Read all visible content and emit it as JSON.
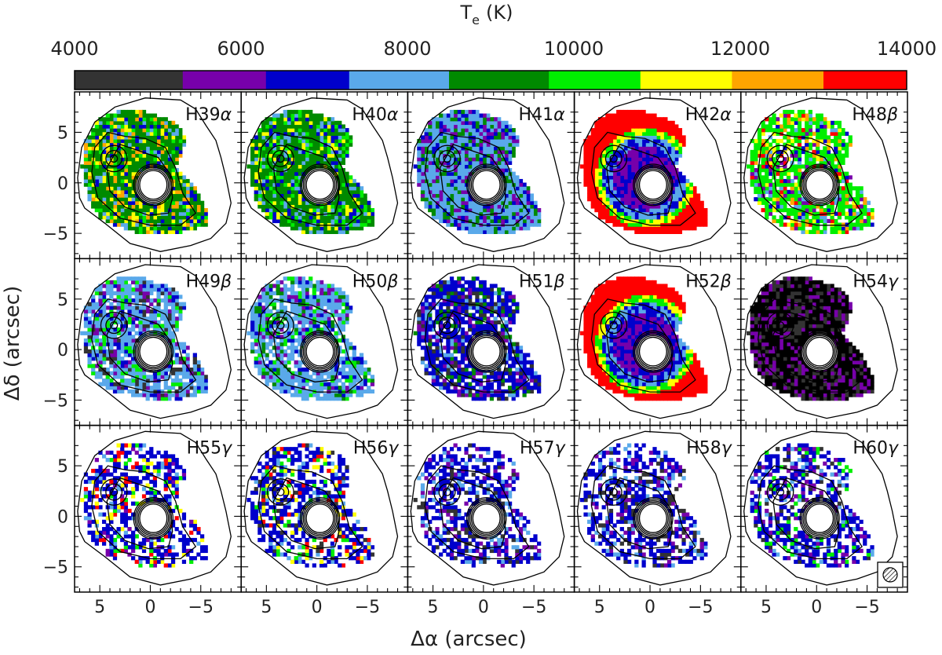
{
  "chart_data": {
    "type": "heatmap",
    "title": "",
    "colorbar": {
      "label_main": "T",
      "label_sub": "e",
      "label_unit": "(K)",
      "ticks": [
        4000,
        6000,
        8000,
        10000,
        12000,
        14000
      ],
      "tick_labels": [
        "4000",
        "6000",
        "8000",
        "10000",
        "12000",
        "14000"
      ],
      "range": [
        4000,
        14000
      ],
      "bins": [
        {
          "from": 4000,
          "to": 5300,
          "color": "#333333"
        },
        {
          "from": 5300,
          "to": 6300,
          "color": "#7700aa"
        },
        {
          "from": 6300,
          "to": 7300,
          "color": "#0000cc"
        },
        {
          "from": 7300,
          "to": 8500,
          "color": "#5aa9ea"
        },
        {
          "from": 8500,
          "to": 9700,
          "color": "#008a00"
        },
        {
          "from": 9700,
          "to": 10800,
          "color": "#00ee00"
        },
        {
          "from": 10800,
          "to": 11900,
          "color": "#ffff00"
        },
        {
          "from": 11900,
          "to": 13000,
          "color": "#ffa500"
        },
        {
          "from": 13000,
          "to": 14000,
          "color": "#ff0000"
        }
      ]
    },
    "xlabel": "Δα (arcsec)",
    "ylabel": "Δδ (arcsec)",
    "xlim": [
      7.5,
      -9
    ],
    "ylim": [
      -7.5,
      9
    ],
    "x_ticks": [
      5,
      0,
      -5
    ],
    "x_tick_labels": [
      "5",
      "0",
      "−5"
    ],
    "y_ticks": [
      5,
      0,
      -5
    ],
    "y_tick_labels": [
      "5",
      "0",
      "−5"
    ],
    "grid": {
      "rows": 3,
      "cols": 5
    },
    "panels": [
      {
        "label": "H39",
        "greek": "α",
        "dominant": "#008a00",
        "mix": [
          "#5aa9ea",
          "#00ee00",
          "#0000cc",
          "#ffff00",
          "#ffa500"
        ]
      },
      {
        "label": "H40",
        "greek": "α",
        "dominant": "#008a00",
        "mix": [
          "#5aa9ea",
          "#00ee00",
          "#0000cc",
          "#ffff00"
        ]
      },
      {
        "label": "H41",
        "greek": "α",
        "dominant": "#5aa9ea",
        "mix": [
          "#0000cc",
          "#008a00",
          "#7700aa"
        ]
      },
      {
        "label": "H42",
        "greek": "α",
        "dominant": "#ff0000",
        "mix": [
          "#0000cc",
          "#5aa9ea",
          "#7700aa",
          "#00ee00",
          "#ffff00"
        ]
      },
      {
        "label": "H48",
        "greek": "β",
        "dominant": "#00ee00",
        "mix": [
          "#5aa9ea",
          "#0000cc",
          "#7700aa",
          "#ffff00",
          "#ff0000",
          "#ffa500"
        ]
      },
      {
        "label": "H49",
        "greek": "β",
        "dominant": "#5aa9ea",
        "mix": [
          "#0000cc",
          "#7700aa",
          "#00ee00",
          "#333333"
        ]
      },
      {
        "label": "H50",
        "greek": "β",
        "dominant": "#5aa9ea",
        "mix": [
          "#008a00",
          "#00ee00",
          "#7700aa",
          "#0000cc"
        ]
      },
      {
        "label": "H51",
        "greek": "β",
        "dominant": "#0000cc",
        "mix": [
          "#5aa9ea",
          "#7700aa",
          "#008a00",
          "#333333"
        ]
      },
      {
        "label": "H52",
        "greek": "β",
        "dominant": "#ff0000",
        "mix": [
          "#0000cc",
          "#5aa9ea",
          "#7700aa",
          "#00ee00",
          "#ffff00"
        ]
      },
      {
        "label": "H54",
        "greek": "γ",
        "dominant": "#000000",
        "mix": [
          "#333333",
          "#7700aa"
        ]
      },
      {
        "label": "H55",
        "greek": "γ",
        "dominant": "#0000cc",
        "mix": [
          "#7700aa",
          "#5aa9ea",
          "#00ee00",
          "#ffff00",
          "#ff0000"
        ]
      },
      {
        "label": "H56",
        "greek": "γ",
        "dominant": "#0000cc",
        "mix": [
          "#5aa9ea",
          "#00ee00",
          "#ff0000",
          "#ffff00",
          "#333333"
        ]
      },
      {
        "label": "H57",
        "greek": "γ",
        "dominant": "#0000cc",
        "mix": [
          "#7700aa",
          "#5aa9ea",
          "#333333"
        ]
      },
      {
        "label": "H58",
        "greek": "γ",
        "dominant": "#0000cc",
        "mix": [
          "#7700aa",
          "#5aa9ea",
          "#333333"
        ]
      },
      {
        "label": "H60",
        "greek": "γ",
        "dominant": "#0000cc",
        "mix": [
          "#7700aa",
          "#333333",
          "#5aa9ea",
          "#00ee00"
        ]
      }
    ]
  }
}
